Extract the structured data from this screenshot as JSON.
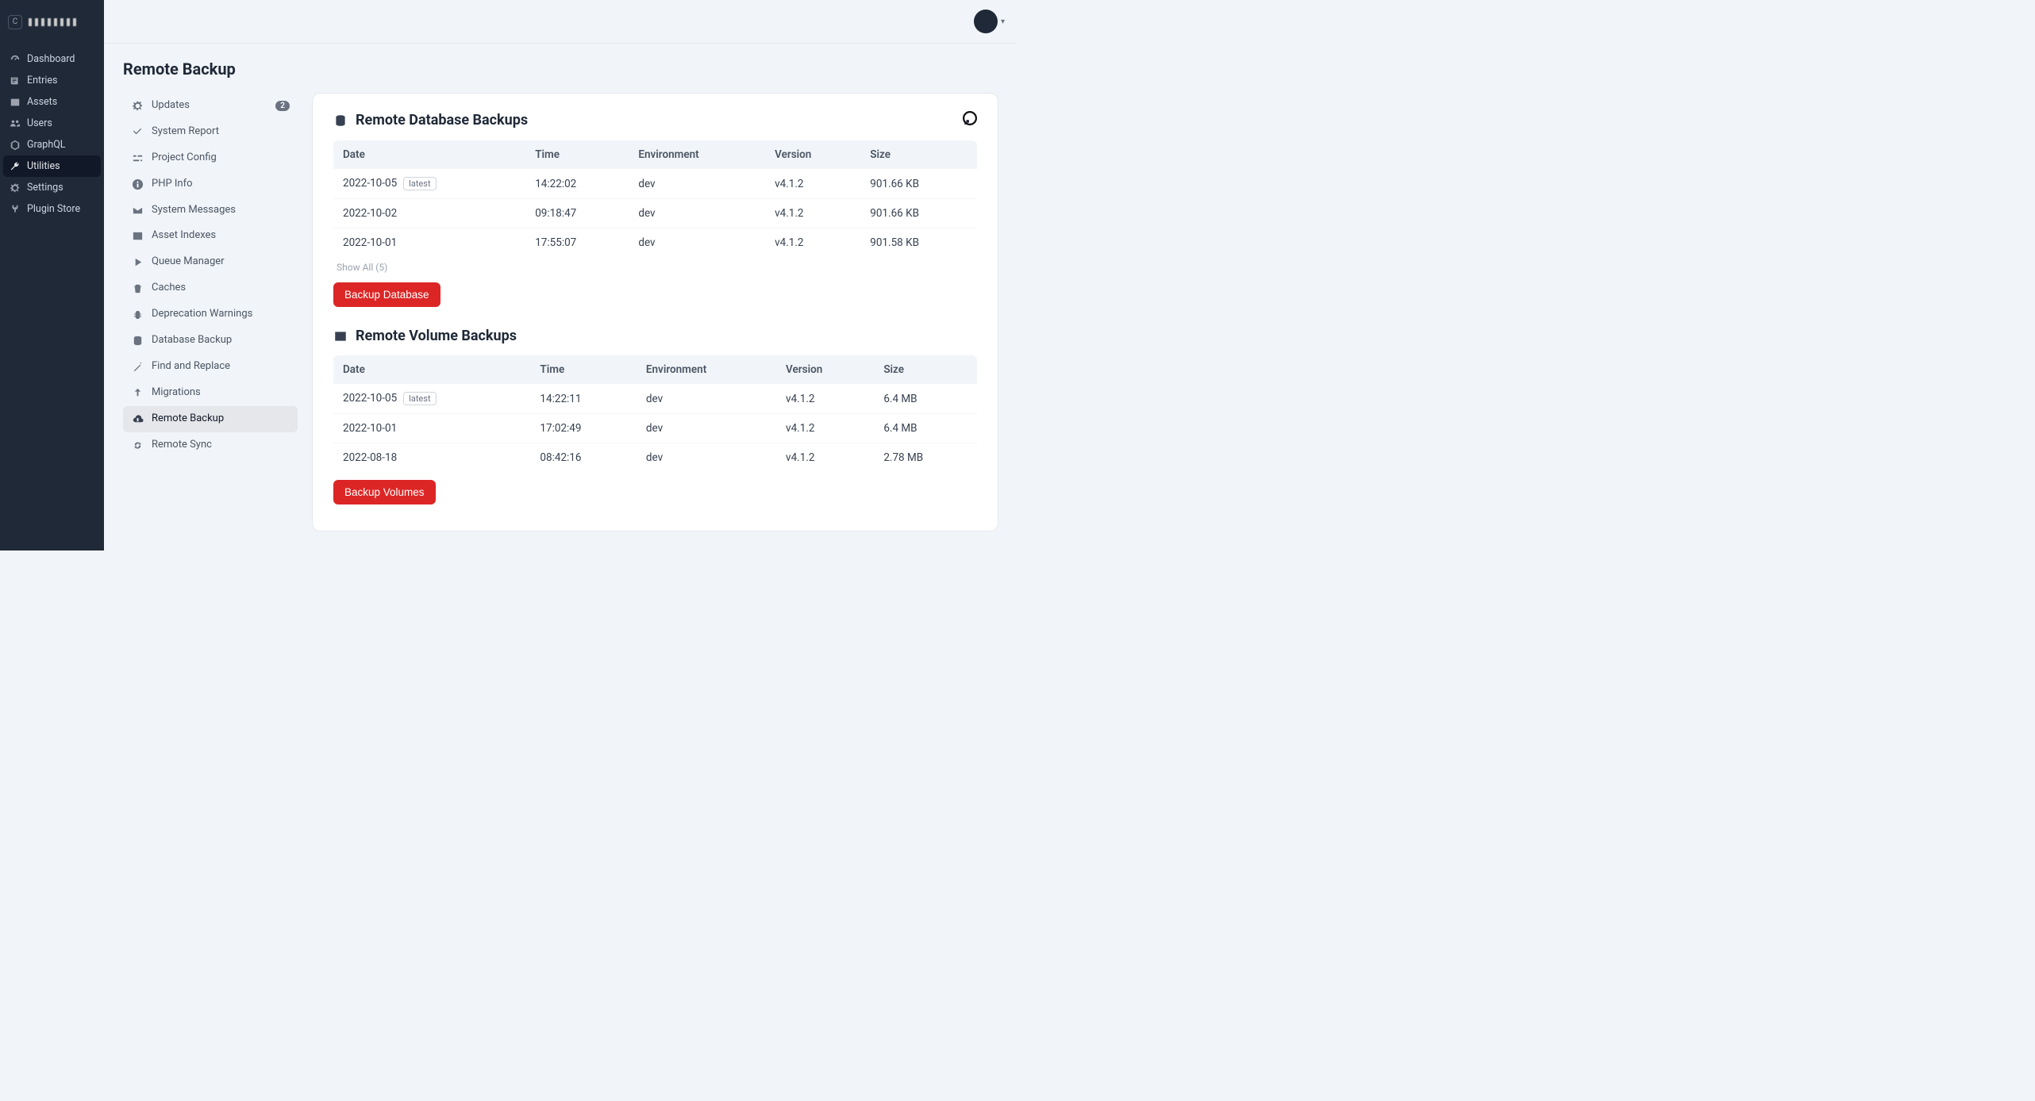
{
  "header": {
    "logo_letter": "C"
  },
  "sidebar": {
    "items": [
      {
        "label": "Dashboard",
        "icon": "gauge"
      },
      {
        "label": "Entries",
        "icon": "news"
      },
      {
        "label": "Assets",
        "icon": "image"
      },
      {
        "label": "Users",
        "icon": "users"
      },
      {
        "label": "GraphQL",
        "icon": "graphql"
      },
      {
        "label": "Utilities",
        "icon": "wrench",
        "active": true
      },
      {
        "label": "Settings",
        "icon": "gear"
      },
      {
        "label": "Plugin Store",
        "icon": "plug"
      }
    ]
  },
  "page": {
    "title": "Remote Backup"
  },
  "util_nav": {
    "items": [
      {
        "label": "Updates",
        "icon": "gear",
        "badge": "2"
      },
      {
        "label": "System Report",
        "icon": "check"
      },
      {
        "label": "Project Config",
        "icon": "sliders"
      },
      {
        "label": "PHP Info",
        "icon": "info"
      },
      {
        "label": "System Messages",
        "icon": "mail"
      },
      {
        "label": "Asset Indexes",
        "icon": "image"
      },
      {
        "label": "Queue Manager",
        "icon": "play"
      },
      {
        "label": "Caches",
        "icon": "trash"
      },
      {
        "label": "Deprecation Warnings",
        "icon": "bug"
      },
      {
        "label": "Database Backup",
        "icon": "database"
      },
      {
        "label": "Find and Replace",
        "icon": "wand"
      },
      {
        "label": "Migrations",
        "icon": "arrow-up"
      },
      {
        "label": "Remote Backup",
        "icon": "cloud-up",
        "active": true
      },
      {
        "label": "Remote Sync",
        "icon": "sync"
      }
    ]
  },
  "db_section": {
    "title": "Remote Database Backups",
    "columns": [
      "Date",
      "Time",
      "Environment",
      "Version",
      "Size"
    ],
    "rows": [
      {
        "date": "2022-10-05",
        "time": "14:22:02",
        "env": "dev",
        "ver": "v4.1.2",
        "size": "901.66 KB",
        "latest": true
      },
      {
        "date": "2022-10-02",
        "time": "09:18:47",
        "env": "dev",
        "ver": "v4.1.2",
        "size": "901.66 KB",
        "latest": false
      },
      {
        "date": "2022-10-01",
        "time": "17:55:07",
        "env": "dev",
        "ver": "v4.1.2",
        "size": "901.58 KB",
        "latest": false
      }
    ],
    "show_all": "Show All (5)",
    "button": "Backup Database"
  },
  "vol_section": {
    "title": "Remote Volume Backups",
    "columns": [
      "Date",
      "Time",
      "Environment",
      "Version",
      "Size"
    ],
    "rows": [
      {
        "date": "2022-10-05",
        "time": "14:22:11",
        "env": "dev",
        "ver": "v4.1.2",
        "size": "6.4 MB",
        "latest": true
      },
      {
        "date": "2022-10-01",
        "time": "17:02:49",
        "env": "dev",
        "ver": "v4.1.2",
        "size": "6.4 MB",
        "latest": false
      },
      {
        "date": "2022-08-18",
        "time": "08:42:16",
        "env": "dev",
        "ver": "v4.1.2",
        "size": "2.78 MB",
        "latest": false
      }
    ],
    "button": "Backup Volumes"
  },
  "labels": {
    "latest_tag": "latest"
  },
  "colors": {
    "sidebar_bg": "#1f2937",
    "page_bg": "#f1f5f9",
    "card_bg": "#ffffff",
    "danger": "#dc2626",
    "text": "#374151",
    "muted": "#6b7280"
  }
}
